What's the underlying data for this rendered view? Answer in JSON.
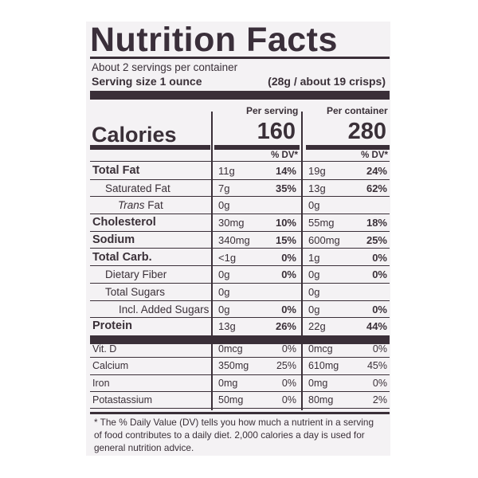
{
  "title": "Nutrition Facts",
  "servings": "About 2 servings per container",
  "serving_size_label": "Serving size 1 ounce",
  "serving_size_value": "(28g / about 19 crisps)",
  "per_serving": "Per serving",
  "per_container": "Per container",
  "calories_label": "Calories",
  "calories_serving": "160",
  "calories_container": "280",
  "dv_header": "% DV*",
  "nutrients": [
    {
      "label": "Total Fat",
      "style": "big",
      "indent": 0,
      "amt1": "11g",
      "dv1": "14%",
      "amt2": "19g",
      "dv2": "24%"
    },
    {
      "label": "Saturated Fat",
      "style": "normal",
      "indent": 1,
      "amt1": "7g",
      "dv1": "35%",
      "amt2": "13g",
      "dv2": "62%"
    },
    {
      "label": "Trans Fat",
      "style": "trans",
      "indent": 2,
      "amt1": "0g",
      "dv1": "",
      "amt2": "0g",
      "dv2": ""
    },
    {
      "label": "Cholesterol",
      "style": "big",
      "indent": 0,
      "amt1": "30mg",
      "dv1": "10%",
      "amt2": "55mg",
      "dv2": "18%"
    },
    {
      "label": "Sodium",
      "style": "big",
      "indent": 0,
      "amt1": "340mg",
      "dv1": "15%",
      "amt2": "600mg",
      "dv2": "25%"
    },
    {
      "label": "Total Carb.",
      "style": "big",
      "indent": 0,
      "amt1": "<1g",
      "dv1": "0%",
      "amt2": "1g",
      "dv2": "0%"
    },
    {
      "label": "Dietary Fiber",
      "style": "normal",
      "indent": 1,
      "amt1": "0g",
      "dv1": "0%",
      "amt2": "0g",
      "dv2": "0%"
    },
    {
      "label": "Total Sugars",
      "style": "normal",
      "indent": 1,
      "amt1": "0g",
      "dv1": "",
      "amt2": "0g",
      "dv2": ""
    },
    {
      "label": "Incl. Added Sugars",
      "style": "normal",
      "indent": 3,
      "amt1": "0g",
      "dv1": "0%",
      "amt2": "0g",
      "dv2": "0%"
    },
    {
      "label": "Protein",
      "style": "big",
      "indent": 0,
      "amt1": "13g",
      "dv1": "26%",
      "amt2": "22g",
      "dv2": "44%"
    }
  ],
  "vitamins": [
    {
      "label": "Vit. D",
      "amt1": "0mcg",
      "dv1": "0%",
      "amt2": "0mcg",
      "dv2": "0%"
    },
    {
      "label": "Calcium",
      "amt1": "350mg",
      "dv1": "25%",
      "amt2": "610mg",
      "dv2": "45%"
    },
    {
      "label": "Iron",
      "amt1": "0mg",
      "dv1": "0%",
      "amt2": "0mg",
      "dv2": "0%"
    },
    {
      "label": "Potastassium",
      "amt1": "50mg",
      "dv1": "0%",
      "amt2": "80mg",
      "dv2": "2%"
    }
  ],
  "footnote": "* The % Daily Value (DV) tells you how much a nutrient in a serving of food contributes to a daily diet. 2,000 calories a day is used for general nutrition advice."
}
